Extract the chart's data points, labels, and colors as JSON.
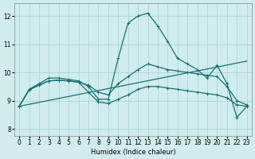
{
  "bg_color": "#d0ecec",
  "grid_color": "#a8d0d0",
  "line_color": "#1a7070",
  "xlabel": "Humidex (Indice chaleur)",
  "xlim": [
    -0.5,
    23.5
  ],
  "ylim": [
    7.75,
    12.45
  ],
  "yticks": [
    8,
    9,
    10,
    11,
    12
  ],
  "xticks": [
    0,
    1,
    2,
    3,
    4,
    5,
    6,
    7,
    8,
    9,
    10,
    11,
    12,
    13,
    14,
    15,
    16,
    17,
    18,
    19,
    20,
    21,
    22,
    23
  ],
  "curve1_x": [
    0,
    1,
    2,
    3,
    4,
    5,
    6,
    7,
    8,
    9,
    10,
    11,
    12,
    13,
    14,
    15,
    16,
    17,
    18,
    19,
    20,
    21,
    22,
    23
  ],
  "curve1_y": [
    8.8,
    9.4,
    9.6,
    9.8,
    9.8,
    9.75,
    9.7,
    9.5,
    9.05,
    9.05,
    10.5,
    11.75,
    12.0,
    12.1,
    11.65,
    11.1,
    10.5,
    10.3,
    10.1,
    9.8,
    10.25,
    9.6,
    8.4,
    8.8
  ],
  "curve2_x": [
    0,
    1,
    2,
    3,
    4,
    5,
    6,
    7,
    8,
    9,
    10,
    11,
    12,
    13,
    14,
    15,
    16,
    17,
    18,
    19,
    20,
    21,
    22,
    23
  ],
  "curve2_y": [
    8.8,
    9.38,
    9.55,
    9.7,
    9.72,
    9.7,
    9.65,
    9.55,
    9.3,
    9.2,
    9.6,
    9.85,
    10.1,
    10.3,
    10.2,
    10.1,
    10.05,
    10.0,
    9.95,
    9.9,
    9.85,
    9.5,
    9.0,
    8.85
  ],
  "curve3_x": [
    0,
    23
  ],
  "curve3_y": [
    8.8,
    10.4
  ],
  "curve4_x": [
    0,
    1,
    2,
    3,
    4,
    5,
    6,
    7,
    8,
    9,
    10,
    11,
    12,
    13,
    14,
    15,
    16,
    17,
    18,
    19,
    20,
    21,
    22,
    23
  ],
  "curve4_y": [
    8.8,
    9.38,
    9.55,
    9.7,
    9.72,
    9.7,
    9.65,
    9.3,
    8.95,
    8.9,
    9.05,
    9.2,
    9.4,
    9.5,
    9.5,
    9.45,
    9.4,
    9.35,
    9.3,
    9.25,
    9.2,
    9.1,
    8.85,
    8.8
  ]
}
